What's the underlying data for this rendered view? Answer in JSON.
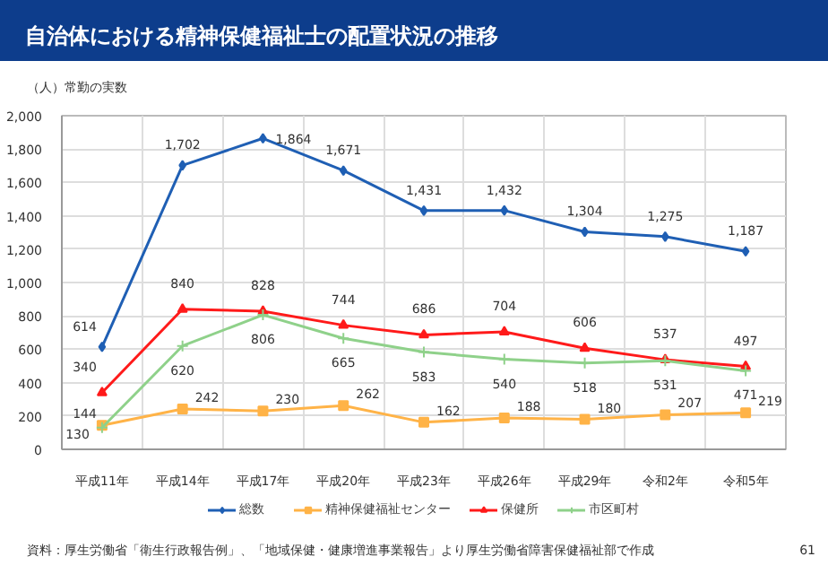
{
  "chart_data": {
    "type": "line",
    "title": "自治体における精神保健福祉士の配置状況の推移",
    "ylabel": "（人）常勤の実数",
    "categories": [
      "平成11年",
      "平成14年",
      "平成17年",
      "平成20年",
      "平成23年",
      "平成26年",
      "平成29年",
      "令和2年",
      "令和5年"
    ],
    "series": [
      {
        "name": "総数",
        "color": "#1f5fb4",
        "marker": "diamond",
        "values": [
          614,
          1702,
          1864,
          1671,
          1431,
          1432,
          1304,
          1275,
          1187
        ],
        "value_labels": [
          "614",
          "1,702",
          "1,864",
          "1,671",
          "1,431",
          "1,432",
          "1,304",
          "1,275",
          "1,187"
        ]
      },
      {
        "name": "精神保健福祉センター",
        "color": "#ffb347",
        "marker": "square",
        "values": [
          144,
          242,
          230,
          262,
          162,
          188,
          180,
          207,
          219
        ],
        "value_labels": [
          "144",
          "242",
          "230",
          "262",
          "162",
          "188",
          "180",
          "207",
          "219"
        ]
      },
      {
        "name": "保健所",
        "color": "#ff1a1a",
        "marker": "triangle",
        "values": [
          340,
          840,
          828,
          744,
          686,
          704,
          606,
          537,
          497
        ],
        "value_labels": [
          "340",
          "840",
          "828",
          "744",
          "686",
          "704",
          "606",
          "537",
          "497"
        ]
      },
      {
        "name": "市区町村",
        "color": "#8fd18a",
        "marker": "cross",
        "values": [
          130,
          620,
          806,
          665,
          583,
          540,
          518,
          531,
          471
        ],
        "value_labels": [
          "130",
          "620",
          "806",
          "665",
          "583",
          "540",
          "518",
          "531",
          "471"
        ]
      }
    ],
    "ylim": [
      0,
      2000
    ],
    "yticks": [
      {
        "value": 0,
        "label": "0"
      },
      {
        "value": 200,
        "label": "200"
      },
      {
        "value": 400,
        "label": "400"
      },
      {
        "value": 600,
        "label": "600"
      },
      {
        "value": 800,
        "label": "800"
      },
      {
        "value": 1000,
        "label": "1,000"
      },
      {
        "value": 1200,
        "label": "1,200"
      },
      {
        "value": 1400,
        "label": "1,400"
      },
      {
        "value": 1600,
        "label": "1,600"
      },
      {
        "value": 1800,
        "label": "1,800"
      },
      {
        "value": 2000,
        "label": "2,000"
      }
    ],
    "grid": true,
    "legend": "bottom",
    "line_style": "solid",
    "annotations": [
      "資料：厚生労働省「衛生行政報告例」、「地域保健・健康増進事業報告」より厚生労働省障害保健福祉部で作成",
      "61"
    ]
  }
}
